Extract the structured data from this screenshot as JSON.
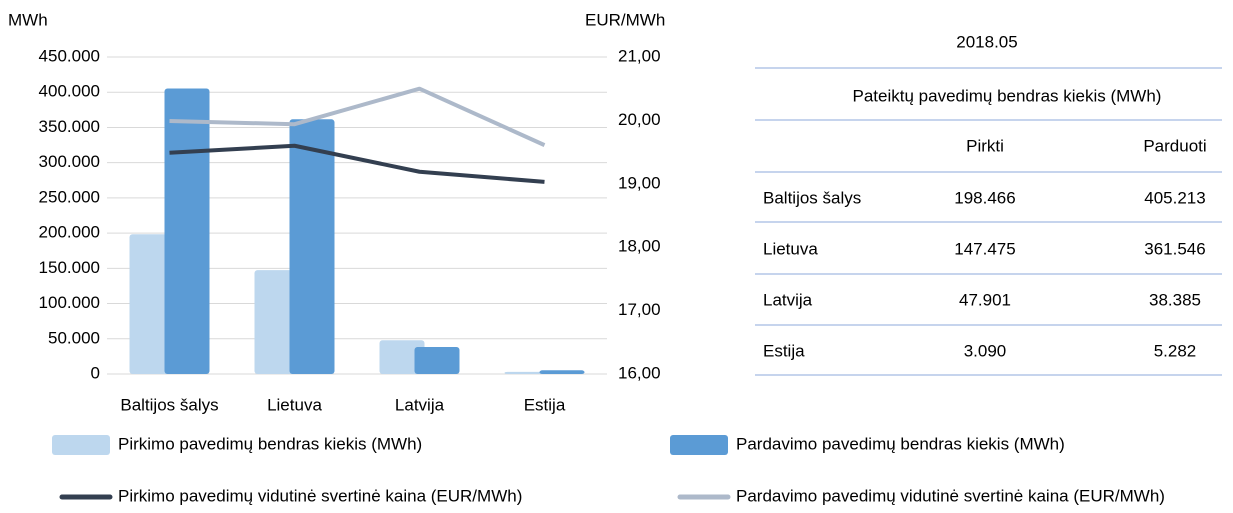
{
  "chart_data": {
    "type": "bar",
    "y_label": "MWh",
    "y2_label": "EUR/MWh",
    "categories": [
      "Baltijos šalys",
      "Lietuva",
      "Latvija",
      "Estija"
    ],
    "series": [
      {
        "name": "Pirkimo pavedimų bendras kiekis (MWh)",
        "type": "bar",
        "color": "#bdd7ee",
        "values": [
          198466,
          147475,
          47901,
          3090
        ]
      },
      {
        "name": "Pardavimo pavedimų bendras kiekis (MWh)",
        "type": "bar",
        "color": "#5b9bd5",
        "values": [
          405213,
          361546,
          38385,
          5282
        ]
      },
      {
        "name": "Pirkimo pavedimų vidutinė svertinė kaina (EUR/MWh)",
        "type": "line",
        "axis": "y2",
        "color": "#333f50",
        "values": [
          19.49,
          19.6,
          19.19,
          19.03
        ]
      },
      {
        "name": "Pardavimo pavedimų vidutinė svertinė kaina (EUR/MWh)",
        "type": "line",
        "axis": "y2",
        "color": "#adb9ca",
        "values": [
          19.99,
          19.94,
          20.5,
          19.61
        ]
      }
    ],
    "ylim": [
      0,
      450000
    ],
    "yticks": [
      0,
      {
        "value": 50000,
        "label": "50.000"
      },
      {
        "value": 100000,
        "label": "100.000"
      },
      {
        "value": 150000,
        "label": "150.000"
      },
      {
        "value": 200000,
        "label": "200.000"
      },
      {
        "value": 250000,
        "label": "250.000"
      },
      {
        "value": 300000,
        "label": "300.000"
      },
      {
        "value": 350000,
        "label": "350.000"
      },
      {
        "value": 400000,
        "label": "400.000"
      },
      {
        "value": 450000,
        "label": "450.000"
      }
    ],
    "y2lim": [
      16,
      21
    ],
    "y2ticks": [
      {
        "value": 16,
        "label": "16,00"
      },
      {
        "value": 17,
        "label": "17,00"
      },
      {
        "value": 18,
        "label": "18,00"
      },
      {
        "value": 19,
        "label": "19,00"
      },
      {
        "value": 20,
        "label": "20,00"
      },
      {
        "value": 21,
        "label": "21,00"
      }
    ],
    "grid": true
  },
  "table": {
    "title": "2018.05",
    "header": "Pateiktų pavedimų bendras kiekis (MWh)",
    "columns": [
      "Pirkti",
      "Parduoti"
    ],
    "rows": [
      [
        "Baltijos šalys",
        "198.466",
        "405.213"
      ],
      [
        "Lietuva",
        "147.475",
        "361.546"
      ],
      [
        "Latvija",
        "47.901",
        "38.385"
      ],
      [
        "Estija",
        "3.090",
        "5.282"
      ]
    ]
  }
}
